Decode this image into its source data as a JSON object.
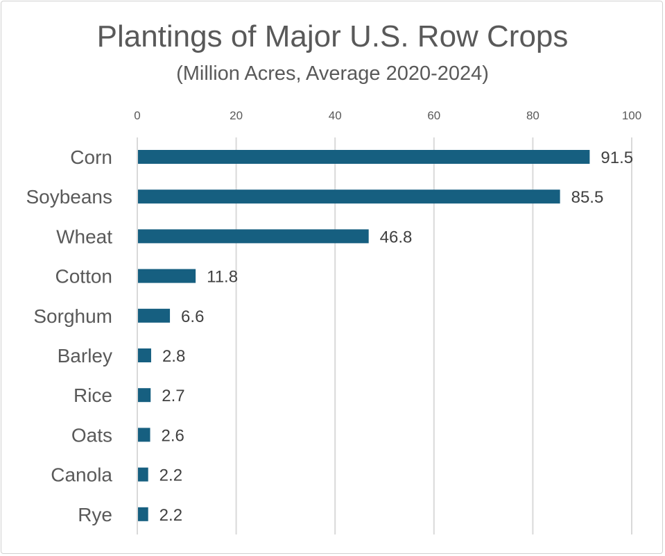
{
  "chart_data": {
    "type": "bar",
    "orientation": "horizontal",
    "title": "Plantings of Major U.S. Row Crops",
    "subtitle": "(Million Acres, Average 2020-2024)",
    "categories": [
      "Corn",
      "Soybeans",
      "Wheat",
      "Cotton",
      "Sorghum",
      "Barley",
      "Rice",
      "Oats",
      "Canola",
      "Rye"
    ],
    "values": [
      91.5,
      85.5,
      46.8,
      11.8,
      6.6,
      2.8,
      2.7,
      2.6,
      2.2,
      2.2
    ],
    "data_labels": [
      "91.5",
      "85.5",
      "46.8",
      "11.8",
      "6.6",
      "2.8",
      "2.7",
      "2.6",
      "2.2",
      "2.2"
    ],
    "xlim": [
      0,
      100
    ],
    "x_ticks": [
      "0",
      "20",
      "40",
      "60",
      "80",
      "100"
    ],
    "x_axis_position": "top",
    "grid": true,
    "bar_color": "#165f80",
    "grid_color": "#d9d9d9"
  }
}
